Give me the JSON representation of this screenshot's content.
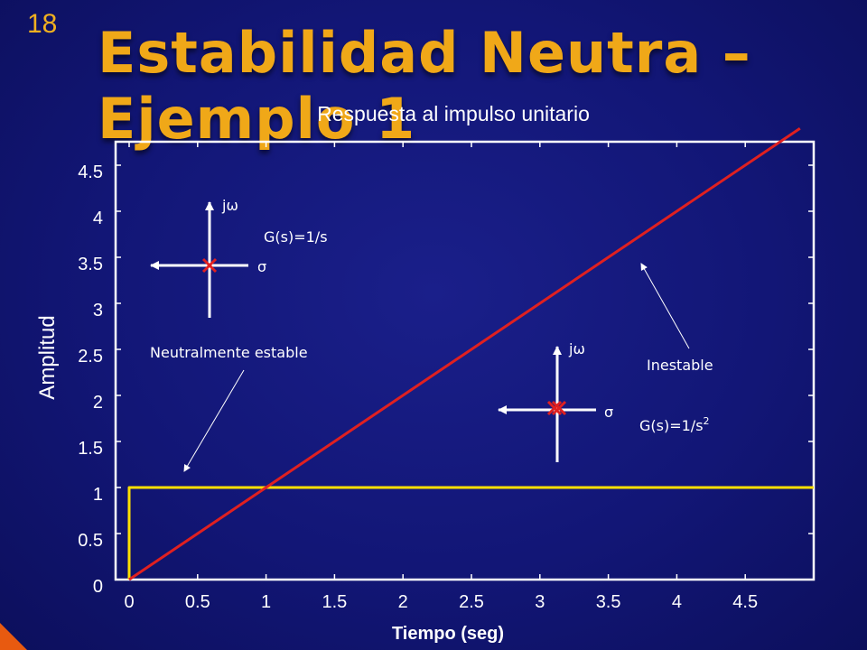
{
  "slide": {
    "number": "18",
    "title": "Estabilidad Neutra – Ejemplo 1"
  },
  "annotations": {
    "neutral_label": "Neutralmente estable",
    "unstable_label": "Inestable",
    "jw": "jω",
    "sigma": "σ",
    "g1": "G(s)=1/s",
    "g2_base": "G(s)=1/s",
    "g2_exp": "2"
  },
  "colors": {
    "background": "#121676",
    "title": "#f0a818",
    "step_line": "#ffe000",
    "ramp_line": "#e02020",
    "pole_marker": "#e02020"
  },
  "chart_data": {
    "type": "line",
    "title": "Respuesta al impulso unitario",
    "xlabel": "Tiempo (seg)",
    "ylabel": "Amplitud",
    "xlim": [
      0,
      5
    ],
    "ylim": [
      0,
      5
    ],
    "x_ticks": [
      0,
      0.5,
      1,
      1.5,
      2,
      2.5,
      3,
      3.5,
      4,
      4.5
    ],
    "x_tick_labels": [
      "0",
      "0.5",
      "1",
      "1.5",
      "2",
      "2.5",
      "3",
      "3.5",
      "4",
      "4.5"
    ],
    "y_ticks": [
      0,
      0.5,
      1,
      1.5,
      2,
      2.5,
      3,
      3.5,
      4,
      4.5
    ],
    "y_tick_labels": [
      "0",
      "0.5",
      "1",
      "1.5",
      "2",
      "2.5",
      "3",
      "3.5",
      "4",
      "4.5"
    ],
    "grid": false,
    "series": [
      {
        "color": "#ffe000",
        "x": [
          0,
          0,
          5
        ],
        "y": [
          0,
          1,
          1
        ]
      },
      {
        "color": "#e02020",
        "x": [
          0,
          4.9
        ],
        "y": [
          0,
          4.9
        ]
      }
    ]
  }
}
